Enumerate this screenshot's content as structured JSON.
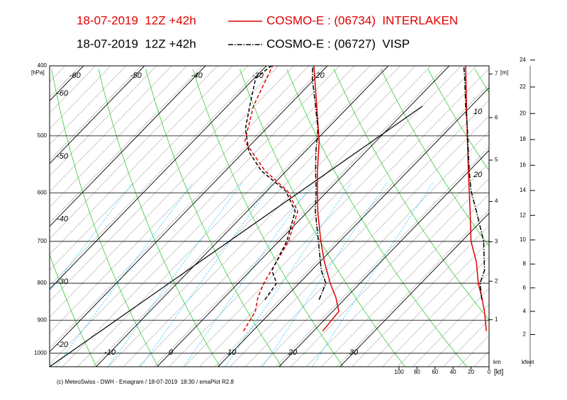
{
  "chart_data": {
    "type": "emagram",
    "run": "18-07-2019  12Z +42h",
    "series": [
      {
        "name": "COSMO-E : (06734)  INTERLAKEN",
        "color": "#e00000",
        "line_style": "solid",
        "pressure": [
          932,
          875,
          837,
          800,
          748,
          700,
          636,
          596,
          559,
          509,
          455,
          400
        ],
        "temperature": [
          21.5,
          21.0,
          18.3,
          15.1,
          10.8,
          6.9,
          1.6,
          -1.7,
          -4.9,
          -9.3,
          -15.3,
          -22.2
        ],
        "dewpoint": [
          8.5,
          7.3,
          5.5,
          4.2,
          2.9,
          1.6,
          -1.7,
          -6.6,
          -13.5,
          -21.5,
          -25.7,
          -29.0
        ],
        "wind_speed": [
          3,
          5,
          8,
          12,
          14,
          20,
          21,
          22,
          23,
          24,
          25,
          26
        ]
      },
      {
        "name": "COSMO-E : (06727)  VISP",
        "color": "#000000",
        "line_style": "dashdot",
        "pressure": [
          843,
          800,
          768,
          700,
          636,
          596,
          559,
          526,
          489,
          455,
          416,
          400
        ],
        "temperature": [
          15.9,
          14.4,
          11.6,
          6.5,
          1.2,
          -1.9,
          -5.2,
          -8.2,
          -11.5,
          -15.5,
          -20.5,
          -22.4
        ],
        "dewpoint": [
          7.0,
          6.3,
          3.5,
          1.3,
          -2.1,
          -6.9,
          -14.1,
          -19.2,
          -23.4,
          -26.3,
          -29.8,
          -29.2
        ],
        "wind_speed": [
          8,
          10,
          5,
          6,
          14,
          20,
          22,
          23,
          24,
          26,
          27,
          28
        ]
      }
    ],
    "ylabel": "[hPa]",
    "ylim": [
      400,
      1044
    ],
    "yticks": [
      400,
      500,
      600,
      700,
      800,
      900,
      1000
    ],
    "log_y": true,
    "xticks": [
      -60,
      -50,
      -40,
      -30,
      -20,
      -10,
      0,
      10,
      20,
      30
    ],
    "x2lim": [
      100,
      0
    ],
    "x2ticks": [
      100,
      80,
      60,
      40,
      20,
      0
    ],
    "x2label": "[kt]",
    "height_label": "[m]",
    "km_label": "km",
    "km_ticks": [
      1,
      2,
      3,
      4,
      5,
      6,
      7
    ],
    "kfeet_label": "kfeet",
    "kfeet_ticks": [
      2,
      4,
      6,
      8,
      10,
      12,
      14,
      16,
      18,
      20,
      22,
      24
    ],
    "annotations": [
      "10",
      "20"
    ],
    "grid": true,
    "footer": "(c) MeteoSwiss - DWH - Emagram / 18-07-2019  18:30 / emaPlot R2.8"
  }
}
